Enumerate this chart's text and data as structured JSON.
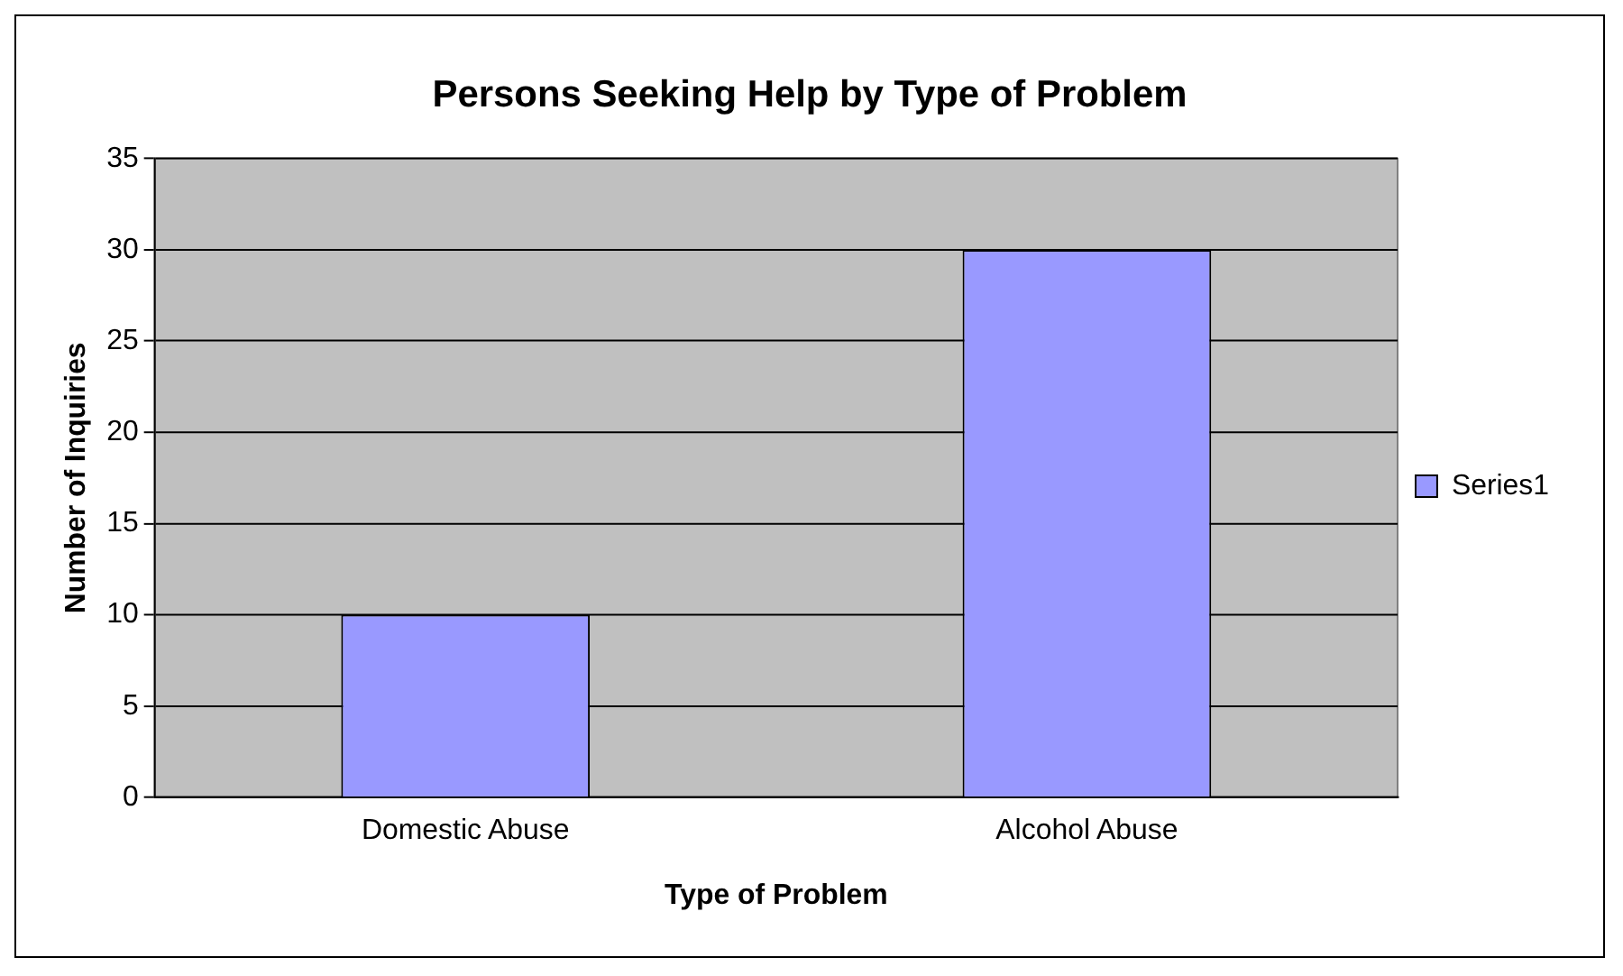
{
  "chart_data": {
    "type": "bar",
    "title": "Persons Seeking Help by Type of Problem",
    "xlabel": "Type of Problem",
    "ylabel": "Number of Inquiries",
    "categories": [
      "Domestic Abuse",
      "Alcohol Abuse"
    ],
    "series": [
      {
        "name": "Series1",
        "color": "#9999ff",
        "values": [
          10,
          30
        ]
      }
    ],
    "ylim": [
      0,
      35
    ],
    "yticks": [
      0,
      5,
      10,
      15,
      20,
      25,
      30,
      35
    ],
    "grid": "y",
    "legend": "right"
  }
}
